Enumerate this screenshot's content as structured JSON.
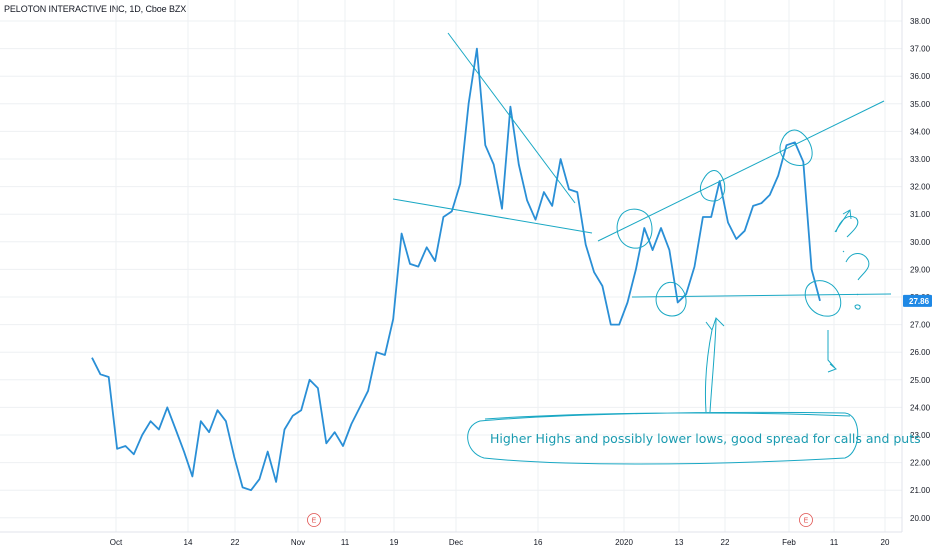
{
  "header": {
    "title": "PELOTON INTERACTIVE INC, 1D, Cboe BZX"
  },
  "colors": {
    "price_line": "#2a8fd6",
    "drawings": "#1aa8c4",
    "price_tag": "#1e88e5",
    "earnings": "#e0524f",
    "grid": "#eef0f3"
  },
  "chart_data": {
    "type": "line",
    "title": "PELOTON INTERACTIVE INC, 1D, Cboe BZX",
    "xlabel": "",
    "ylabel": "",
    "ylim": [
      19.6,
      38.4
    ],
    "y_ticks": [
      "38.00",
      "37.00",
      "36.00",
      "35.00",
      "34.00",
      "33.00",
      "32.00",
      "31.00",
      "30.00",
      "29.00",
      "28.00",
      "27.00",
      "26.00",
      "25.00",
      "24.00",
      "23.00",
      "22.00",
      "21.00",
      "20.00"
    ],
    "x_tick_labels": [
      "Oct",
      "14",
      "22",
      "Nov",
      "11",
      "19",
      "Dec",
      "16",
      "2020",
      "13",
      "22",
      "Feb",
      "11",
      "20"
    ],
    "last_price": "27.86",
    "grid": true,
    "series": [
      {
        "values": [
          25.8,
          25.2,
          25.1,
          22.5,
          22.6,
          22.3,
          23.0,
          23.5,
          23.2,
          24.0,
          23.2,
          22.4,
          21.5,
          23.5,
          23.1,
          23.9,
          23.5,
          22.2,
          21.1,
          21.0,
          21.4,
          22.4,
          21.3,
          23.2,
          23.7,
          23.9,
          25.0,
          24.7,
          22.7,
          23.1,
          22.6,
          23.4,
          24.0,
          24.6,
          26.0,
          25.9,
          27.2,
          30.3,
          29.2,
          29.1,
          29.8,
          29.3,
          30.9,
          31.1,
          32.1,
          35.0,
          37.0,
          33.5,
          32.8,
          31.2,
          34.9,
          32.8,
          31.5,
          30.8,
          31.8,
          31.3,
          33.0,
          31.9,
          31.8,
          29.9,
          28.9,
          28.4,
          27.0,
          27.0,
          27.8,
          29.0,
          30.5,
          29.7,
          30.5,
          29.7,
          27.8,
          28.1,
          29.1,
          30.9,
          30.9,
          32.2,
          30.7,
          30.1,
          30.4,
          31.3,
          31.4,
          31.7,
          32.4,
          33.5,
          33.6,
          32.9,
          29.0,
          27.86
        ]
      }
    ],
    "annotations": [
      {
        "text": "Higher Highs and possibly lower lows, good spread for calls and puts"
      },
      {
        "text": "E"
      },
      {
        "text": "E"
      }
    ]
  }
}
